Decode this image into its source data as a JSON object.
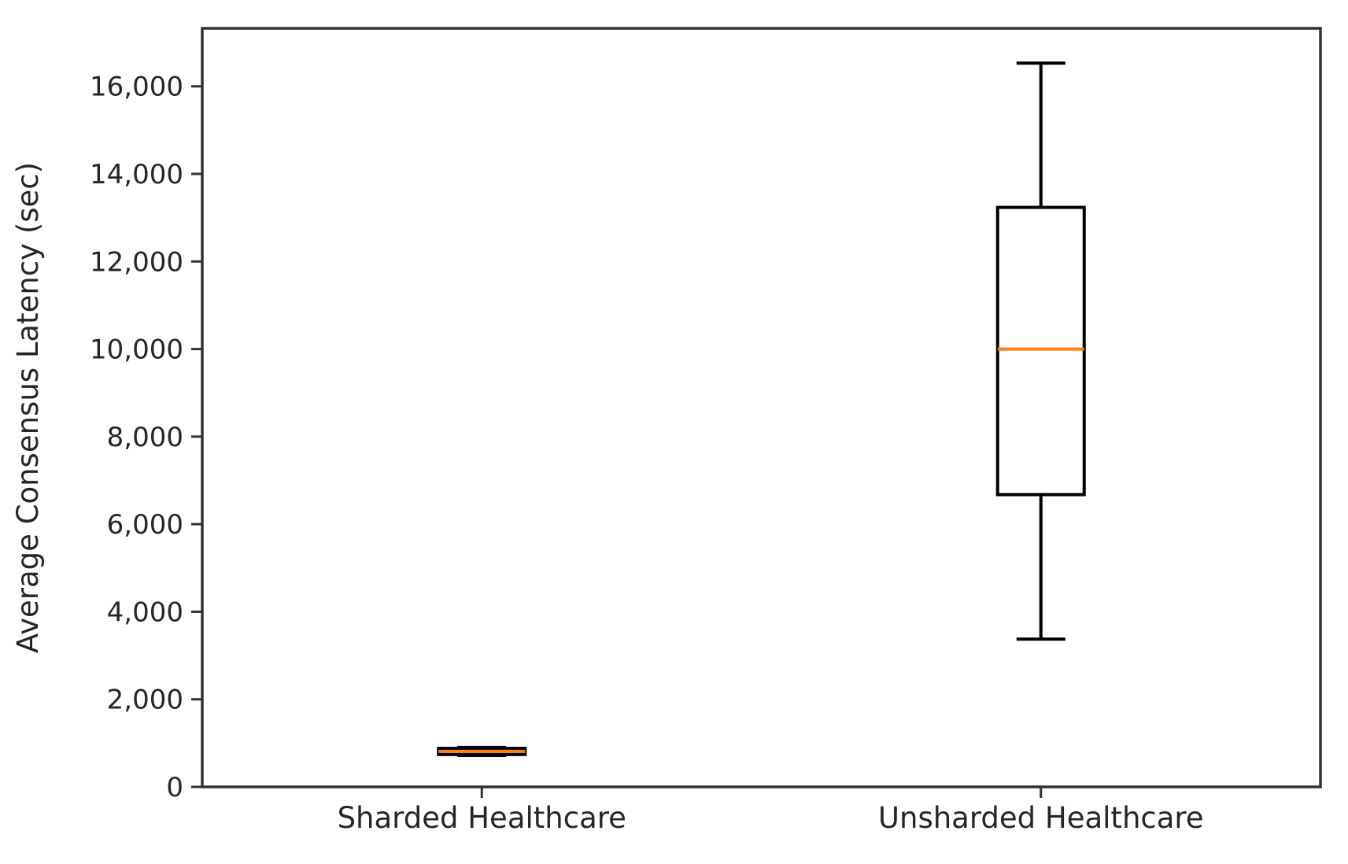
{
  "chart_data": {
    "type": "boxplot",
    "title": "",
    "xlabel": "",
    "ylabel": "Average Consensus Latency (sec)",
    "categories": [
      "Sharded Healthcare",
      "Unsharded Healthcare"
    ],
    "series": [
      {
        "name": "Sharded Healthcare",
        "whisker_low": 720,
        "q1": 740,
        "median": 810,
        "q3": 880,
        "whisker_high": 900
      },
      {
        "name": "Unsharded Healthcare",
        "whisker_low": 3375,
        "q1": 6675,
        "median": 10000,
        "q3": 13235,
        "whisker_high": 16530
      }
    ],
    "ylim": [
      0,
      17325
    ],
    "yticks": {
      "values": [
        0,
        2000,
        4000,
        6000,
        8000,
        10000,
        12000,
        14000,
        16000
      ],
      "labels": [
        "0",
        "2,000",
        "4,000",
        "6,000",
        "8,000",
        "10,000",
        "12,000",
        "14,000",
        "16,000"
      ]
    },
    "grid": false,
    "legend": null,
    "colors": {
      "box_stroke": "#000000",
      "median": "#ff7f0e",
      "frame": "#333333",
      "text": "#262626",
      "background": "#ffffff"
    }
  }
}
